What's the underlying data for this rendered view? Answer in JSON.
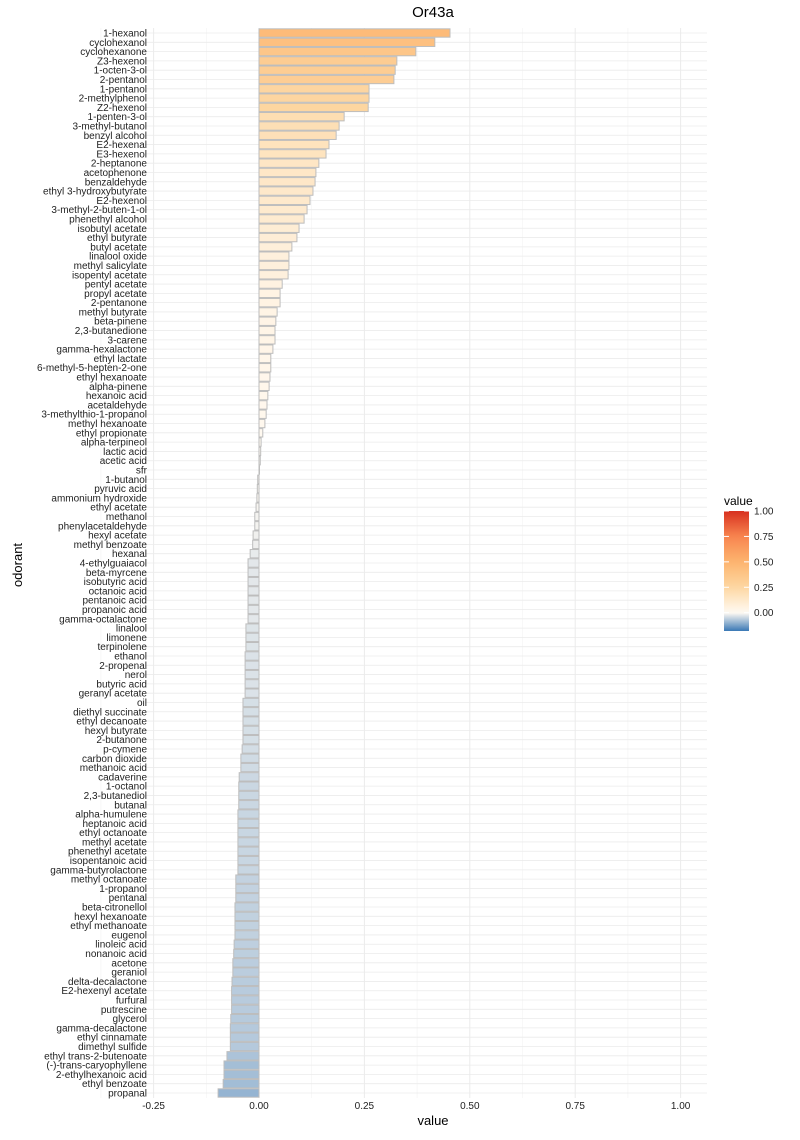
{
  "chart_data": {
    "type": "bar",
    "orientation": "horizontal",
    "title": "Or43a",
    "xlabel": "value",
    "ylabel": "odorant",
    "xlim": [
      -0.25,
      1.05
    ],
    "xticks": [
      "-0.25",
      "0.00",
      "0.25",
      "0.50",
      "0.75",
      "1.00"
    ],
    "xtick_values": [
      -0.25,
      0,
      0.25,
      0.5,
      0.75,
      1.0
    ],
    "grid": true,
    "legend": {
      "title": "value",
      "position": "right",
      "ticks": [
        "1.00",
        "0.75",
        "0.50",
        "0.25",
        "0.00"
      ],
      "tick_values": [
        1,
        0.75,
        0.5,
        0.25,
        0
      ],
      "range": [
        -0.18,
        1.0
      ]
    },
    "colors": {
      "low": "#3a78b5",
      "mid": "#fffaf3",
      "q25": "#fdd7a2",
      "q50": "#fdb46f",
      "q75": "#f8854f",
      "high": "#d7301f",
      "border": "#bdbdbd",
      "grid": "#ebebeb"
    },
    "categories": [
      "1-hexanol",
      "cyclohexanol",
      "cyclohexanone",
      "Z3-hexenol",
      "1-octen-3-ol",
      "2-pentanol",
      "1-pentanol",
      "2-methylphenol",
      "Z2-hexenol",
      "1-penten-3-ol",
      "3-methyl-butanol",
      "benzyl alcohol",
      "E2-hexenal",
      "E3-hexenol",
      "2-heptanone",
      "acetophenone",
      "benzaldehyde",
      "ethyl 3-hydroxybutyrate",
      "E2-hexenol",
      "3-methyl-2-buten-1-ol",
      "phenethyl alcohol",
      "isobutyl acetate",
      "ethyl butyrate",
      "butyl acetate",
      "linalool oxide",
      "methyl salicylate",
      "isopentyl acetate",
      "pentyl acetate",
      "propyl acetate",
      "2-pentanone",
      "methyl butyrate",
      "beta-pinene",
      "2,3-butanedione",
      "3-carene",
      "gamma-hexalactone",
      "ethyl lactate",
      "6-methyl-5-hepten-2-one",
      "ethyl hexanoate",
      "alpha-pinene",
      "hexanoic acid",
      "acetaldehyde",
      "3-methylthio-1-propanol",
      "methyl hexanoate",
      "ethyl propionate",
      "alpha-terpineol",
      "lactic acid",
      "acetic acid",
      "sfr",
      "1-butanol",
      "pyruvic acid",
      "ammonium hydroxide",
      "ethyl acetate",
      "methanol",
      "phenylacetaldehyde",
      "hexyl acetate",
      "methyl benzoate",
      "hexanal",
      "4-ethylguaiacol",
      "beta-myrcene",
      "isobutyric acid",
      "octanoic acid",
      "pentanoic acid",
      "propanoic acid",
      "gamma-octalactone",
      "linalool",
      "limonene",
      "terpinolene",
      "ethanol",
      "2-propenal",
      "nerol",
      "butyric acid",
      "geranyl acetate",
      "oil",
      "diethyl succinate",
      "ethyl decanoate",
      "hexyl butyrate",
      "2-butanone",
      "p-cymene",
      "carbon dioxide",
      "methanoic acid",
      "cadaverine",
      "1-octanol",
      "2,3-butanediol",
      "butanal",
      "alpha-humulene",
      "heptanoic acid",
      "ethyl octanoate",
      "methyl acetate",
      "phenethyl acetate",
      "isopentanoic acid",
      "gamma-butyrolactone",
      "methyl octanoate",
      "1-propanol",
      "pentanal",
      "beta-citronellol",
      "hexyl hexanoate",
      "ethyl methanoate",
      "eugenol",
      "linoleic acid",
      "nonanoic acid",
      "acetone",
      "geraniol",
      "delta-decalactone",
      "E2-hexenyl acetate",
      "furfural",
      "putrescine",
      "glycerol",
      "gamma-decalactone",
      "ethyl cinnamate",
      "dimethyl sulfide",
      "ethyl trans-2-butenoate",
      "(-)-trans-caryophyllene",
      "2-ethylhexanoic acid",
      "ethyl benzoate",
      "propanal"
    ],
    "values": [
      0.453,
      0.417,
      0.372,
      0.327,
      0.323,
      0.32,
      0.261,
      0.261,
      0.259,
      0.202,
      0.19,
      0.183,
      0.166,
      0.159,
      0.142,
      0.135,
      0.133,
      0.128,
      0.121,
      0.114,
      0.107,
      0.095,
      0.09,
      0.078,
      0.071,
      0.071,
      0.069,
      0.055,
      0.05,
      0.05,
      0.043,
      0.04,
      0.038,
      0.038,
      0.033,
      0.028,
      0.028,
      0.026,
      0.024,
      0.021,
      0.019,
      0.017,
      0.014,
      0.009,
      0.005,
      0.004,
      0.003,
      0.0,
      -0.003,
      -0.004,
      -0.005,
      -0.007,
      -0.01,
      -0.01,
      -0.014,
      -0.015,
      -0.021,
      -0.026,
      -0.026,
      -0.026,
      -0.026,
      -0.026,
      -0.026,
      -0.026,
      -0.031,
      -0.031,
      -0.031,
      -0.033,
      -0.033,
      -0.033,
      -0.033,
      -0.033,
      -0.038,
      -0.038,
      -0.038,
      -0.038,
      -0.038,
      -0.04,
      -0.043,
      -0.043,
      -0.047,
      -0.048,
      -0.048,
      -0.048,
      -0.05,
      -0.05,
      -0.05,
      -0.05,
      -0.05,
      -0.05,
      -0.05,
      -0.055,
      -0.055,
      -0.055,
      -0.057,
      -0.057,
      -0.057,
      -0.057,
      -0.059,
      -0.06,
      -0.062,
      -0.062,
      -0.064,
      -0.065,
      -0.065,
      -0.065,
      -0.067,
      -0.068,
      -0.068,
      -0.068,
      -0.076,
      -0.083,
      -0.083,
      -0.085,
      -0.097
    ]
  }
}
